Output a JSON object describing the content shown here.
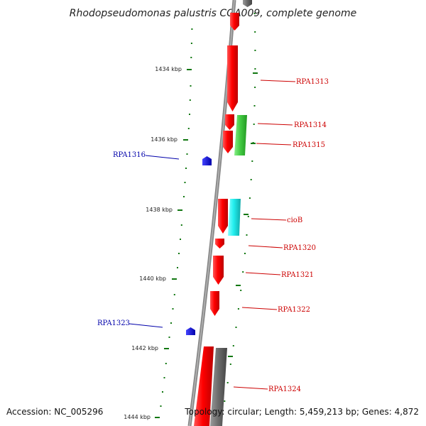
{
  "title": "Rhodopseudomonas palustris CGA009, complete genome",
  "colors": {
    "forward_gene": "#ff0000",
    "reverse_gene_other": "#666666",
    "rna_feature": "#44cc44",
    "misc_feature": "#22eeee",
    "repeat_feature": "#0000ff",
    "forward_label": "#cc0000",
    "reverse_label": "#0000aa",
    "tick": "#117711",
    "backbone": "#888888"
  },
  "ticks": [
    {
      "label": "1434 kbp"
    },
    {
      "label": "1436 kbp"
    },
    {
      "label": "1438 kbp"
    },
    {
      "label": "1440 kbp"
    },
    {
      "label": "1442 kbp"
    },
    {
      "label": "1444 kbp"
    }
  ],
  "forward_labels": [
    "RPA1313",
    "RPA1314",
    "RPA1315",
    "cioB",
    "RPA1320",
    "RPA1321",
    "RPA1322",
    "RPA1324"
  ],
  "reverse_labels": [
    "RPA1316",
    "RPA1323"
  ],
  "footer": {
    "accession": "Accession: NC_005296",
    "stats": "Topology: circular; Length: 5,459,213 bp; Genes: 4,872"
  }
}
